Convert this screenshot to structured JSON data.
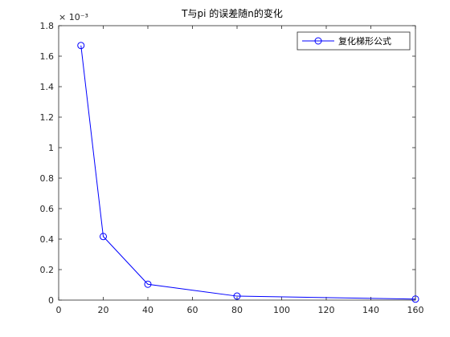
{
  "chart_data": {
    "type": "line",
    "title": "T与pi 的误差随n的变化",
    "xlabel": "",
    "ylabel": "",
    "xlim": [
      0,
      160
    ],
    "ylim": [
      0,
      0.0018
    ],
    "y_exponent_label": "× 10⁻³",
    "x_ticks": [
      0,
      20,
      40,
      60,
      80,
      100,
      120,
      140,
      160
    ],
    "x_tick_labels": [
      "0",
      "20",
      "40",
      "60",
      "80",
      "100",
      "120",
      "140",
      "160"
    ],
    "y_ticks": [
      0,
      0.0002,
      0.0004,
      0.0006,
      0.0008,
      0.001,
      0.0012,
      0.0014,
      0.0016,
      0.0018
    ],
    "y_tick_labels": [
      "0",
      "0.2",
      "0.4",
      "0.6",
      "0.8",
      "1",
      "1.2",
      "1.4",
      "1.6",
      "1.8"
    ],
    "grid": false,
    "legend_position": "top-right",
    "series": [
      {
        "name": "复化梯形公式",
        "color": "#0000ff",
        "marker": "circle",
        "x": [
          10,
          20,
          40,
          80,
          160
        ],
        "y": [
          0.00167,
          0.000417,
          0.000104,
          2.6e-05,
          6.5e-06
        ]
      }
    ]
  }
}
